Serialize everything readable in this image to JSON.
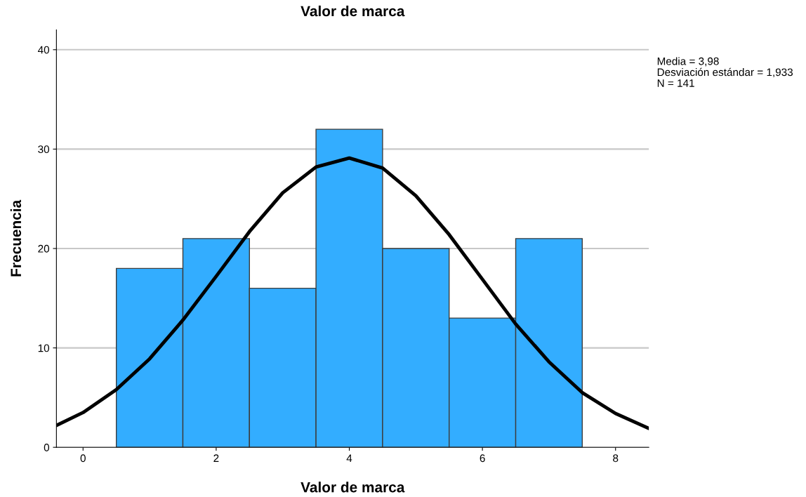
{
  "chart_data": {
    "type": "histogram",
    "title": "Valor de marca",
    "xlabel": "Valor de marca",
    "ylabel": "Frecuencia",
    "bins": [
      0.5,
      1.5,
      2.5,
      3.5,
      4.5,
      5.5,
      6.5,
      7.5
    ],
    "values": [
      18,
      21,
      16,
      32,
      20,
      13,
      21
    ],
    "color": "#33adff",
    "series": [
      {
        "type": "line",
        "color": "#000000",
        "x": [
          -0.4,
          0,
          0.5,
          1,
          1.5,
          2,
          2.5,
          3,
          3.5,
          4,
          4.5,
          5,
          5.5,
          6,
          6.5,
          7,
          7.5,
          8,
          8.5
        ],
        "values": [
          2.2,
          3.5,
          5.8,
          8.9,
          12.8,
          17.2,
          21.7,
          25.6,
          28.2,
          29.1,
          28.1,
          25.3,
          21.4,
          16.9,
          12.4,
          8.6,
          5.5,
          3.4,
          1.9
        ]
      }
    ],
    "xlim": [
      -0.4,
      8.5
    ],
    "xticks": [
      0,
      2,
      4,
      6,
      8
    ],
    "ylim": [
      0,
      42
    ],
    "yticks": [
      0,
      10,
      20,
      30,
      40
    ],
    "grid": "y",
    "annotations": [
      "Media = 3,98",
      "Desviación estándar = 1,933",
      "N = 141"
    ]
  }
}
